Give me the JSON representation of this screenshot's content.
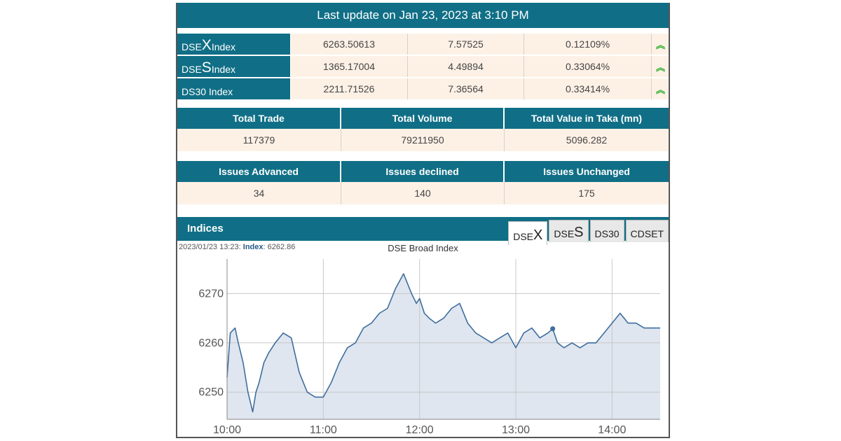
{
  "banner": {
    "text": "Last update on Jan 23, 2023 at 3:10 PM"
  },
  "indices": [
    {
      "prefix": "DSE",
      "big": "X",
      "suffix": " Index",
      "value": "6263.50613",
      "change": "7.57525",
      "percent": "0.12109%",
      "direction": "up"
    },
    {
      "prefix": "DSE",
      "big": "S",
      "suffix": " Index",
      "value": "1365.17004",
      "change": "4.49894",
      "percent": "0.33064%",
      "direction": "up"
    },
    {
      "prefix": "DS30 Index",
      "big": "",
      "suffix": "",
      "value": "2211.71526",
      "change": "7.36564",
      "percent": "0.33414%",
      "direction": "up"
    }
  ],
  "arrow_icon": "double-chevron-up-icon",
  "arrow_color": "#2eb02e",
  "trade_summary": {
    "headers": [
      "Total Trade",
      "Total Volume",
      "Total Value in Taka (mn)"
    ],
    "values": [
      "117379",
      "79211950",
      "5096.282"
    ]
  },
  "issues_summary": {
    "headers": [
      "Issues Advanced",
      "Issues declined",
      "Issues Unchanged"
    ],
    "values": [
      "34",
      "140",
      "175"
    ]
  },
  "indices_panel": {
    "title": "Indices",
    "tabs": [
      {
        "prefix": "DSE",
        "big": "X"
      },
      {
        "prefix": "DSE",
        "big": "S"
      },
      {
        "prefix": "DS30",
        "big": ""
      },
      {
        "prefix": "CDSET",
        "big": ""
      }
    ],
    "active_tab": 0,
    "caption_time": "2023/01/23 13:23:",
    "caption_label": "Index",
    "caption_value": ": 6262.86"
  },
  "colors": {
    "header_bg": "#106f86",
    "row_bg": "#fdf1e6",
    "line": "#3f6e9e",
    "area": "#dfe6ef"
  },
  "chart_data": {
    "type": "area",
    "title": "DSE Broad Index",
    "xlabel": "",
    "ylabel": "",
    "x_ticks": [
      "10:00",
      "11:00",
      "12:00",
      "13:00",
      "14:00"
    ],
    "y_ticks": [
      6250,
      6260,
      6270
    ],
    "ylim": [
      6244.5,
      6277
    ],
    "xlim": [
      "10:00",
      "14:30"
    ],
    "grid": true,
    "highlight_point": {
      "x": "13:23",
      "y": 6262.86
    },
    "x": [
      "10:00",
      "10:02",
      "10:05",
      "10:07",
      "10:10",
      "10:13",
      "10:16",
      "10:18",
      "10:20",
      "10:23",
      "10:26",
      "10:30",
      "10:35",
      "10:40",
      "10:45",
      "10:50",
      "10:55",
      "11:00",
      "11:05",
      "11:10",
      "11:15",
      "11:20",
      "11:25",
      "11:30",
      "11:35",
      "11:40",
      "11:45",
      "11:50",
      "11:55",
      "11:58",
      "12:00",
      "12:03",
      "12:06",
      "12:10",
      "12:15",
      "12:20",
      "12:25",
      "12:30",
      "12:35",
      "12:40",
      "12:45",
      "12:50",
      "12:55",
      "13:00",
      "13:05",
      "13:10",
      "13:15",
      "13:20",
      "13:23",
      "13:26",
      "13:30",
      "13:35",
      "13:40",
      "13:45",
      "13:50",
      "13:55",
      "14:00",
      "14:05",
      "14:10",
      "14:15",
      "14:20",
      "14:25",
      "14:30"
    ],
    "y": [
      6253,
      6262,
      6263,
      6260,
      6256,
      6250,
      6246,
      6250,
      6252,
      6256,
      6258,
      6260,
      6262,
      6261,
      6254,
      6250,
      6249,
      6249,
      6252,
      6256,
      6259,
      6260,
      6263,
      6264,
      6266,
      6267,
      6271,
      6274,
      6270,
      6268,
      6269,
      6266,
      6265,
      6264,
      6265,
      6267,
      6268,
      6264,
      6262,
      6261,
      6260,
      6261,
      6262,
      6259,
      6262,
      6263,
      6261,
      6262,
      6262.86,
      6260,
      6259,
      6260,
      6259,
      6260,
      6260,
      6262,
      6264,
      6266,
      6264,
      6264,
      6263,
      6263,
      6263
    ]
  }
}
